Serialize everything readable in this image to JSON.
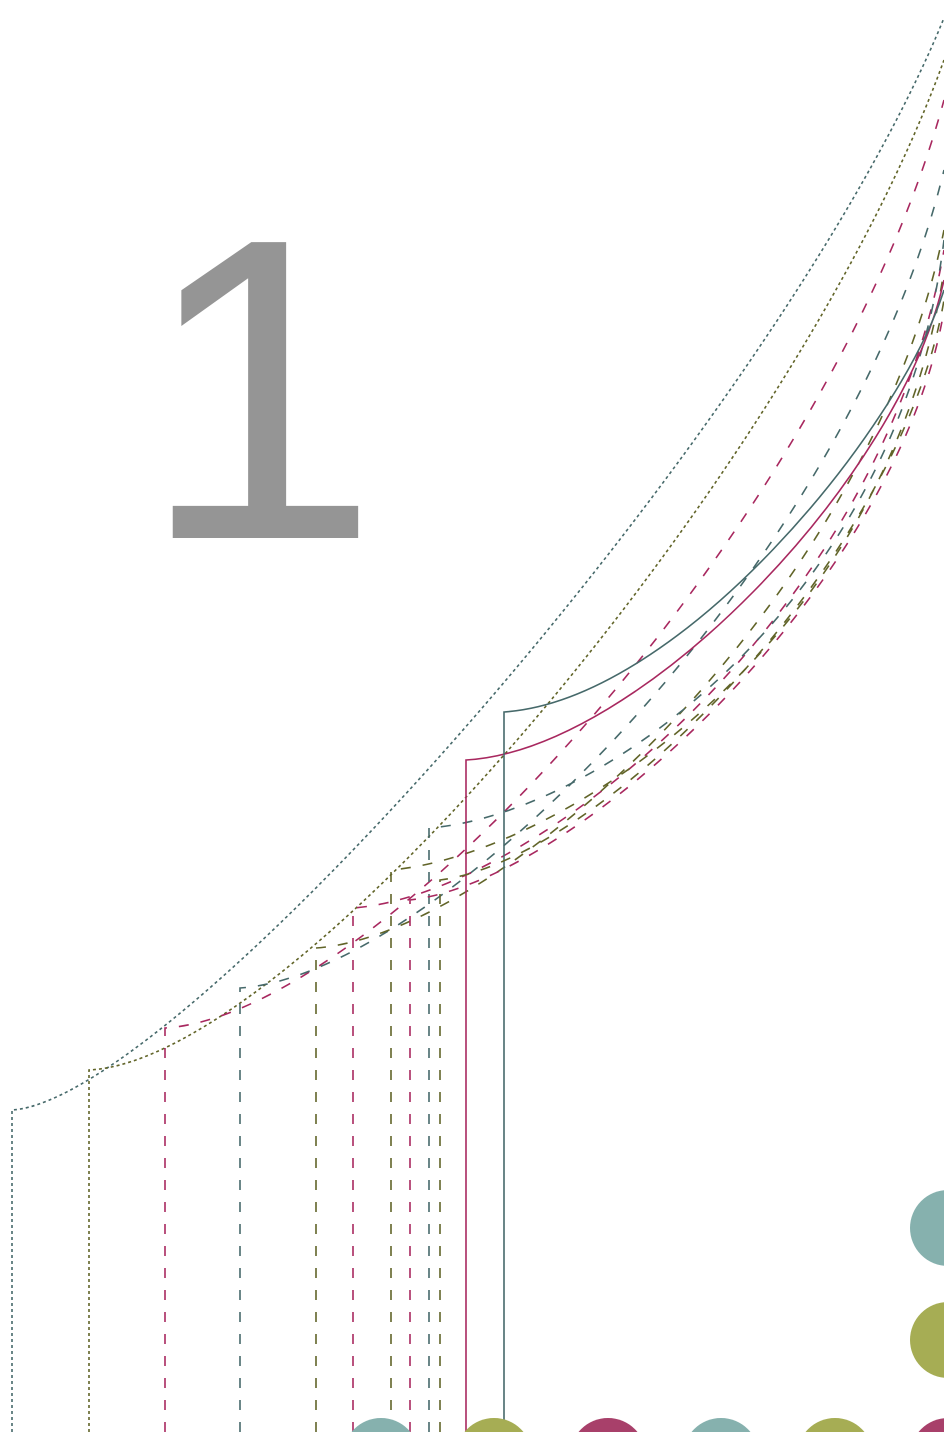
{
  "number_label": "1",
  "colors": {
    "number": "#959595",
    "magenta": "#a8285f",
    "olive": "#616428",
    "slate": "#46696a",
    "dot_teal": "#86b1ae",
    "dot_olive": "#a6ad54",
    "dot_magenta": "#a8406a",
    "background": "#ffffff"
  },
  "decoration": {
    "pattern_lines": [
      {
        "color": "slate"
      },
      {
        "color": "olive"
      },
      {
        "color": "magenta"
      },
      {
        "color": "slate"
      },
      {
        "color": "olive"
      },
      {
        "color": "magenta"
      },
      {
        "color": "slate"
      },
      {
        "color": "olive"
      },
      {
        "color": "magenta"
      },
      {
        "color": "slate"
      },
      {
        "color": "olive"
      },
      {
        "color": "magenta"
      }
    ],
    "dots": [
      {
        "color": "dot_teal"
      },
      {
        "color": "dot_olive"
      },
      {
        "color": "dot_teal"
      },
      {
        "color": "dot_olive"
      },
      {
        "color": "dot_magenta"
      },
      {
        "color": "dot_teal"
      },
      {
        "color": "dot_olive"
      },
      {
        "color": "dot_magenta"
      }
    ]
  }
}
